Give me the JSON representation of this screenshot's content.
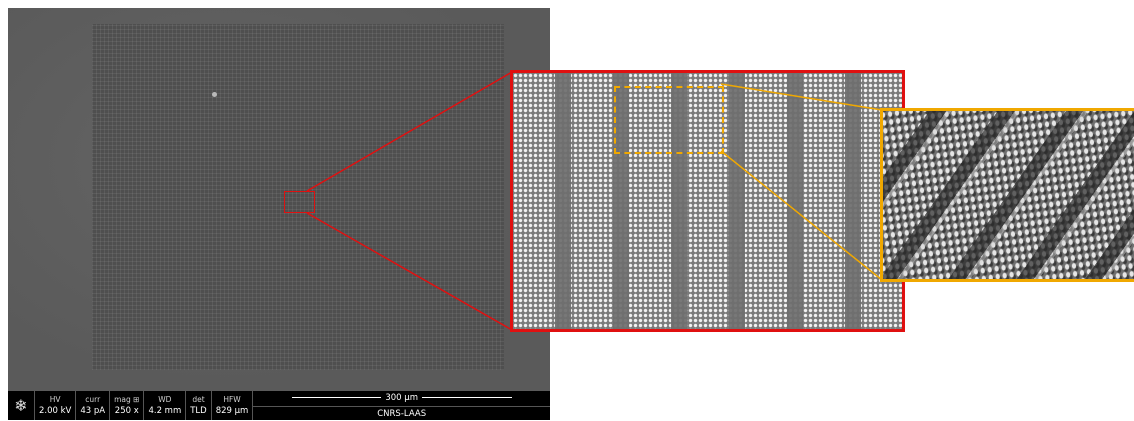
{
  "databar": {
    "logo_icon": "fei-snowflake-logo",
    "fields": [
      {
        "label": "HV",
        "value": "2.00 kV"
      },
      {
        "label": "curr",
        "value": "43 pA"
      },
      {
        "label": "mag ⊞",
        "value": "250 x"
      },
      {
        "label": "WD",
        "value": "4.2 mm"
      },
      {
        "label": "det",
        "value": "TLD"
      },
      {
        "label": "HFW",
        "value": "829 µm"
      }
    ],
    "scale_bar": "300 µm",
    "organization": "CNRS-LAAS"
  },
  "colors": {
    "zoom1_outline": "#e01010",
    "zoom2_outline": "#f0a800"
  }
}
